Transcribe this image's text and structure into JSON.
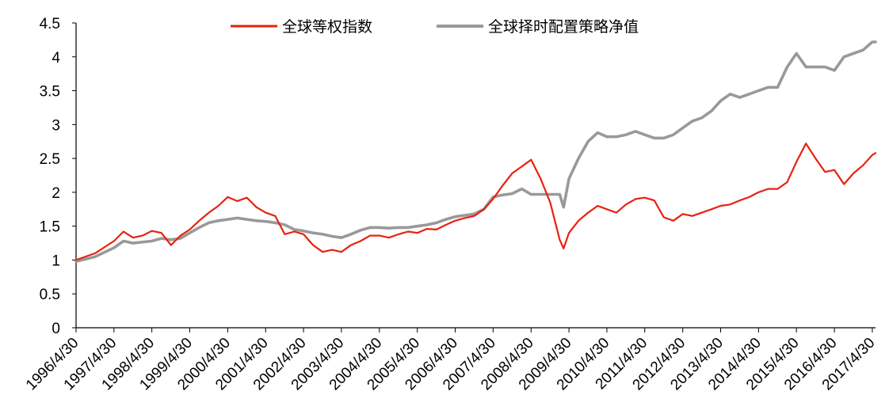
{
  "chart_data": {
    "type": "line",
    "title": "",
    "xlabel": "",
    "ylabel": "",
    "ylim": [
      0,
      4.5
    ],
    "yticks": [
      "0",
      "0.5",
      "1",
      "1.5",
      "2",
      "2.5",
      "3",
      "3.5",
      "4",
      "4.5"
    ],
    "xticks": [
      "1996/4/30",
      "1997/4/30",
      "1998/4/30",
      "1999/4/30",
      "2000/4/30",
      "2001/4/30",
      "2002/4/30",
      "2003/4/30",
      "2004/4/30",
      "2005/4/30",
      "2006/4/30",
      "2007/4/30",
      "2008/4/30",
      "2009/4/30",
      "2010/4/30",
      "2011/4/30",
      "2012/4/30",
      "2013/4/30",
      "2014/4/30",
      "2015/4/30",
      "2016/4/30",
      "2017/4/30"
    ],
    "grid": false,
    "legend_position": "top",
    "series": [
      {
        "name": "全球等权指数",
        "color": "#e8210f",
        "x": [
          "1996-04-30",
          "1996-10-31",
          "1997-04-30",
          "1997-07-31",
          "1997-10-31",
          "1998-01-31",
          "1998-04-30",
          "1998-07-31",
          "1998-10-31",
          "1999-01-31",
          "1999-04-30",
          "1999-07-31",
          "1999-10-31",
          "2000-01-31",
          "2000-04-30",
          "2000-07-31",
          "2000-10-31",
          "2001-01-31",
          "2001-04-30",
          "2001-07-31",
          "2001-10-31",
          "2002-01-31",
          "2002-04-30",
          "2002-07-31",
          "2002-10-31",
          "2003-01-31",
          "2003-04-30",
          "2003-07-31",
          "2003-10-31",
          "2004-01-31",
          "2004-04-30",
          "2004-07-31",
          "2004-10-31",
          "2005-01-31",
          "2005-04-30",
          "2005-07-31",
          "2005-10-31",
          "2006-01-31",
          "2006-04-30",
          "2006-07-31",
          "2006-10-31",
          "2007-01-31",
          "2007-04-30",
          "2007-07-31",
          "2007-10-31",
          "2008-01-31",
          "2008-04-30",
          "2008-07-31",
          "2008-10-31",
          "2009-01-31",
          "2009-03-09",
          "2009-04-30",
          "2009-07-31",
          "2009-10-31",
          "2010-01-31",
          "2010-04-30",
          "2010-07-31",
          "2010-10-31",
          "2011-01-31",
          "2011-04-30",
          "2011-07-31",
          "2011-10-31",
          "2012-01-31",
          "2012-04-30",
          "2012-07-31",
          "2012-10-31",
          "2013-01-31",
          "2013-04-30",
          "2013-07-31",
          "2013-10-31",
          "2014-01-31",
          "2014-04-30",
          "2014-07-31",
          "2014-10-31",
          "2015-01-31",
          "2015-04-30",
          "2015-07-31",
          "2015-10-31",
          "2016-01-31",
          "2016-04-30",
          "2016-07-31",
          "2016-10-31",
          "2017-01-31",
          "2017-04-30",
          "2017-05-31"
        ],
        "values": [
          1.0,
          1.1,
          1.28,
          1.42,
          1.33,
          1.36,
          1.43,
          1.4,
          1.22,
          1.36,
          1.45,
          1.58,
          1.7,
          1.8,
          1.93,
          1.87,
          1.92,
          1.78,
          1.7,
          1.65,
          1.38,
          1.42,
          1.38,
          1.22,
          1.12,
          1.15,
          1.12,
          1.22,
          1.28,
          1.36,
          1.36,
          1.33,
          1.38,
          1.42,
          1.4,
          1.46,
          1.45,
          1.52,
          1.58,
          1.62,
          1.65,
          1.75,
          1.9,
          2.1,
          2.28,
          2.38,
          2.48,
          2.2,
          1.85,
          1.3,
          1.17,
          1.4,
          1.58,
          1.7,
          1.8,
          1.75,
          1.7,
          1.82,
          1.9,
          1.92,
          1.88,
          1.63,
          1.58,
          1.68,
          1.65,
          1.7,
          1.75,
          1.8,
          1.82,
          1.88,
          1.93,
          2.0,
          2.05,
          2.05,
          2.15,
          2.45,
          2.72,
          2.5,
          2.3,
          2.33,
          2.12,
          2.28,
          2.4,
          2.55,
          2.58
        ]
      },
      {
        "name": "全球择时配置策略净值",
        "color": "#999999",
        "x": [
          "1996-04-30",
          "1996-10-31",
          "1997-04-30",
          "1997-07-31",
          "1997-10-31",
          "1998-04-30",
          "1998-07-31",
          "1998-10-31",
          "1999-01-31",
          "1999-04-30",
          "1999-07-31",
          "1999-10-31",
          "2000-01-31",
          "2000-04-30",
          "2000-07-31",
          "2000-10-31",
          "2001-01-31",
          "2001-04-30",
          "2001-07-31",
          "2001-10-31",
          "2002-01-31",
          "2002-04-30",
          "2002-07-31",
          "2002-10-31",
          "2003-01-31",
          "2003-04-30",
          "2003-07-31",
          "2003-10-31",
          "2004-01-31",
          "2004-04-30",
          "2004-07-31",
          "2004-10-31",
          "2005-01-31",
          "2005-04-30",
          "2005-07-31",
          "2005-10-31",
          "2006-01-31",
          "2006-04-30",
          "2006-07-31",
          "2006-10-31",
          "2007-01-31",
          "2007-04-30",
          "2007-07-31",
          "2007-10-31",
          "2008-01-31",
          "2008-04-30",
          "2008-07-31",
          "2008-10-31",
          "2009-01-31",
          "2009-03-09",
          "2009-04-30",
          "2009-07-31",
          "2009-10-31",
          "2010-01-31",
          "2010-04-30",
          "2010-07-31",
          "2010-10-31",
          "2011-01-31",
          "2011-04-30",
          "2011-07-31",
          "2011-10-31",
          "2012-01-31",
          "2012-04-30",
          "2012-07-31",
          "2012-10-31",
          "2013-01-31",
          "2013-04-30",
          "2013-07-31",
          "2013-10-31",
          "2014-01-31",
          "2014-04-30",
          "2014-07-31",
          "2014-10-31",
          "2015-01-31",
          "2015-04-30",
          "2015-07-31",
          "2015-10-31",
          "2016-01-31",
          "2016-04-30",
          "2016-07-31",
          "2016-10-31",
          "2017-01-31",
          "2017-04-30",
          "2017-05-31"
        ],
        "values": [
          0.98,
          1.05,
          1.18,
          1.28,
          1.25,
          1.28,
          1.32,
          1.3,
          1.32,
          1.4,
          1.48,
          1.55,
          1.58,
          1.6,
          1.62,
          1.6,
          1.58,
          1.57,
          1.55,
          1.52,
          1.45,
          1.43,
          1.4,
          1.38,
          1.35,
          1.33,
          1.38,
          1.44,
          1.48,
          1.48,
          1.47,
          1.48,
          1.48,
          1.5,
          1.52,
          1.55,
          1.6,
          1.64,
          1.66,
          1.68,
          1.75,
          1.93,
          1.96,
          1.98,
          2.05,
          1.97,
          1.97,
          1.97,
          1.97,
          1.78,
          2.2,
          2.5,
          2.75,
          2.88,
          2.82,
          2.82,
          2.85,
          2.9,
          2.85,
          2.8,
          2.8,
          2.85,
          2.95,
          3.05,
          3.1,
          3.2,
          3.35,
          3.45,
          3.4,
          3.45,
          3.5,
          3.55,
          3.55,
          3.85,
          4.05,
          3.85,
          3.85,
          3.85,
          3.8,
          4.0,
          4.05,
          4.1,
          4.22,
          4.22
        ]
      }
    ]
  }
}
